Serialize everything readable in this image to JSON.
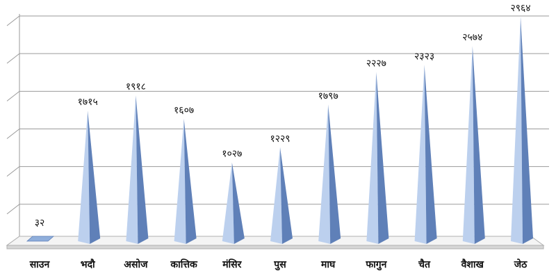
{
  "chart_data": {
    "type": "bar",
    "bar_shape": "pyramid",
    "three_d": true,
    "categories": [
      "साउन",
      "भदौ",
      "असोज",
      "कात्तिक",
      "मंसिर",
      "पुस",
      "माघ",
      "फागुन",
      "चैत",
      "वैशाख",
      "जेठ"
    ],
    "values": [
      32,
      1715,
      1918,
      1607,
      1027,
      1229,
      1797,
      2227,
      2323,
      2574,
      2964
    ],
    "value_labels": [
      "३२",
      "१७१५",
      "१९१८",
      "१६०७",
      "१०२७",
      "१२२९",
      "१७९७",
      "२२२७",
      "२३२३",
      "२५७४",
      "२९६४"
    ],
    "title": "",
    "xlabel": "",
    "ylabel": "",
    "ylim": [
      0,
      3000
    ],
    "grid": true,
    "legend": "none",
    "colors": {
      "bar_light": "#bcd0ee",
      "bar_mid": "#8faedb",
      "bar_dark": "#5f80b8"
    }
  }
}
